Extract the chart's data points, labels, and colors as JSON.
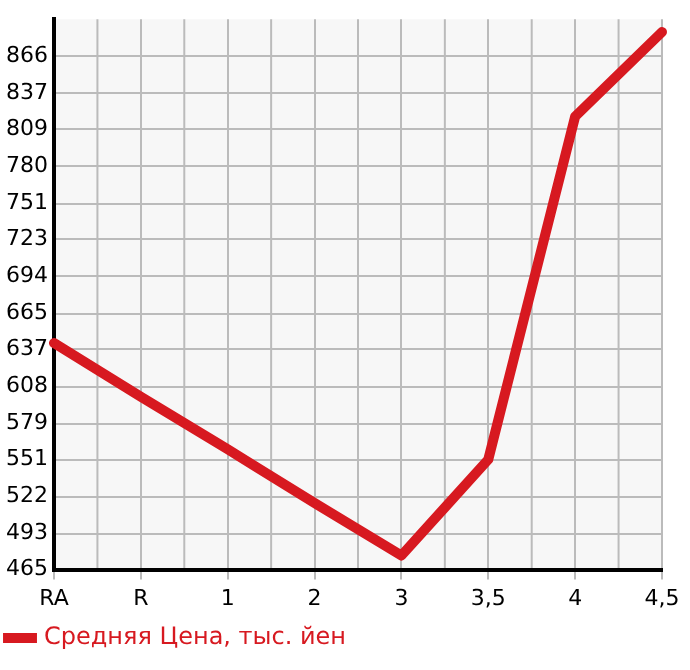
{
  "chart_data": {
    "type": "line",
    "categories": [
      "RA",
      "R",
      "1",
      "2",
      "3",
      "3,5",
      "4",
      "4,5"
    ],
    "series": [
      {
        "name": "Средняя Цена, тыс. йен",
        "color": "#d71920",
        "values": [
          642,
          600,
          559,
          517,
          476,
          551,
          819,
          885
        ]
      }
    ],
    "ylim": [
      465,
      895
    ],
    "yticks": [
      465,
      493,
      522,
      551,
      579,
      608,
      637,
      665,
      694,
      723,
      751,
      780,
      809,
      837,
      866
    ],
    "grid": true,
    "legend": "bottom left",
    "marker": "none",
    "line_style": "solid"
  }
}
